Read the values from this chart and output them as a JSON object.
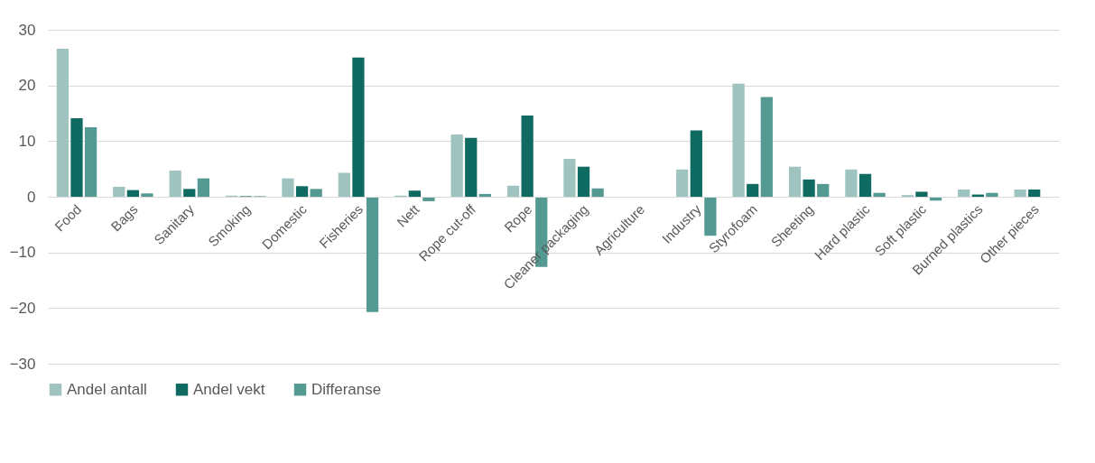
{
  "chart_data": {
    "type": "bar",
    "categories": [
      "Food",
      "Bags",
      "Sanitary",
      "Smoking",
      "Domestic",
      "Fisheries",
      "Nett",
      "Rope cut-off",
      "Rope",
      "Cleaner packaging",
      "Agriculture",
      "Industry",
      "Styrofoam",
      "Sheeting",
      "Hard plastic",
      "Soft plastic",
      "Burned plastics",
      "Other pieces"
    ],
    "series": [
      {
        "name": "Andel antall",
        "color": "#9fc4c0",
        "values": [
          26.6,
          1.8,
          4.7,
          0.2,
          3.3,
          4.3,
          0.2,
          11.2,
          2.0,
          6.8,
          0,
          4.9,
          20.3,
          5.4,
          4.9,
          0.3,
          1.3,
          1.3
        ]
      },
      {
        "name": "Andel vekt",
        "color": "#0f6b62",
        "values": [
          14.1,
          1.2,
          1.4,
          0.1,
          1.9,
          25.0,
          1.1,
          10.6,
          14.6,
          5.4,
          0,
          11.9,
          2.3,
          3.1,
          4.1,
          0.9,
          0.4,
          1.3
        ]
      },
      {
        "name": "Differanse",
        "color": "#559a92",
        "values": [
          12.5,
          0.6,
          3.3,
          0.1,
          1.4,
          -20.7,
          -0.8,
          0.5,
          -12.6,
          1.5,
          0,
          -7.0,
          17.9,
          2.3,
          0.7,
          -0.7,
          0.7,
          0
        ]
      }
    ],
    "ylim": [
      -30,
      30
    ],
    "yticks": [
      -30,
      -20,
      -10,
      0,
      10,
      20,
      30
    ],
    "grid": "y",
    "legend": "bottom"
  }
}
